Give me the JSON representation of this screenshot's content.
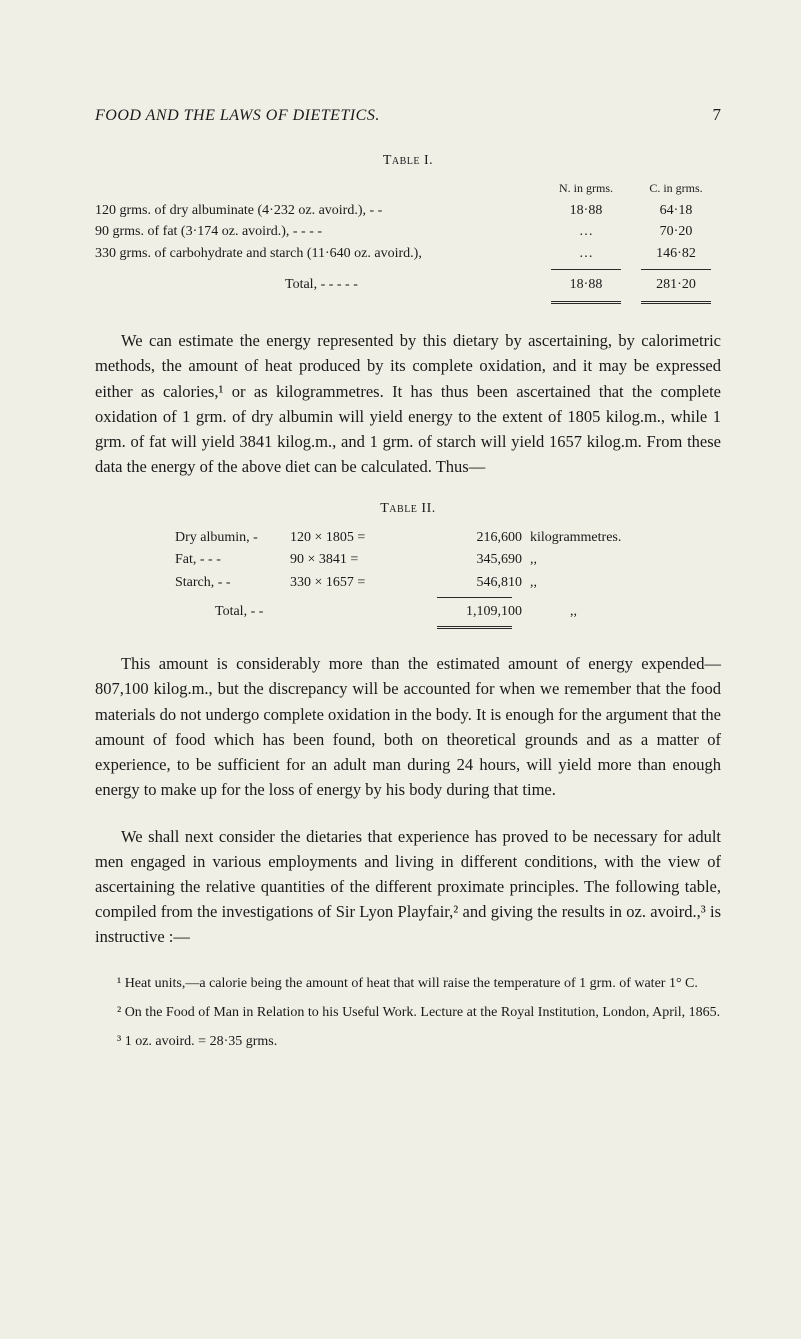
{
  "colors": {
    "background": "#efefe5",
    "text": "#1a1a1a",
    "rule": "#2a2a2a"
  },
  "typography": {
    "body_font": "Georgia, Times New Roman, serif",
    "body_fontsize_pt": 12,
    "heading_smallcaps": true,
    "italic_header": true
  },
  "header": {
    "title": "FOOD AND THE LAWS OF DIETETICS.",
    "page_number": "7"
  },
  "table1": {
    "heading": "Table I.",
    "col_headers": {
      "n": "N. in grms.",
      "c": "C. in grms."
    },
    "rows": [
      {
        "label": "120 grms. of dry albuminate (4·232 oz. avoird.),  -    -",
        "n": "18·88",
        "c": "64·18"
      },
      {
        "label": "90 grms. of fat (3·174 oz. avoird.),       -     -     -     -",
        "n": "…",
        "c": "70·20"
      },
      {
        "label": "330 grms. of carbohydrate and starch (11·640 oz. avoird.),",
        "n": "…",
        "c": "146·82"
      }
    ],
    "total": {
      "label": "Total,   -     -     -     -     -",
      "n": "18·88",
      "c": "281·20"
    }
  },
  "para1": "We can estimate the energy represented by this dietary by ascertaining, by calorimetric methods, the amount of heat produced by its complete oxidation, and it may be expressed either as calories,¹ or as kilogrammetres. It has thus been ascertained that the complete oxidation of 1 grm. of dry albumin will yield energy to the extent of 1805 kilog.m., while 1 grm. of fat will yield 3841 kilog.m., and 1 grm. of starch will yield 1657 kilog.m. From these data the energy of the above diet can be calculated. Thus—",
  "table2": {
    "heading": "Table II.",
    "rows": [
      {
        "name": "Dry albumin,  -",
        "expr": "120 × 1805 =",
        "val": "216,600",
        "unit": "kilogrammetres."
      },
      {
        "name": "Fat,  -     -     -",
        "expr": "90 × 3841 =",
        "val": "345,690",
        "unit": ",,"
      },
      {
        "name": "Starch,     -     -",
        "expr": "330 × 1657 =",
        "val": "546,810",
        "unit": ",,"
      }
    ],
    "total": {
      "label": "Total,    -    -",
      "val": "1,109,100",
      "unit": ",,"
    }
  },
  "para2": "This amount is considerably more than the estimated amount of energy expended—807,100 kilog.m., but the discrepancy will be accounted for when we remember that the food materials do not undergo complete oxidation in the body. It is enough for the argument that the amount of food which has been found, both on theoretical grounds and as a matter of experience, to be sufficient for an adult man during 24 hours, will yield more than enough energy to make up for the loss of energy by his body during that time.",
  "para3": "We shall next consider the dietaries that experience has proved to be necessary for adult men engaged in various employments and living in different conditions, with the view of ascertaining the relative quantities of the different proximate principles. The following table, compiled from the investigations of Sir Lyon Playfair,² and giving the results in oz. avoird.,³ is instructive :—",
  "footnotes": {
    "fn1": "¹ Heat units,—a calorie being the amount of heat that will raise the temperature of 1 grm. of water 1° C.",
    "fn2": "² On the Food of Man in Relation to his Useful Work. Lecture at the Royal Institution, London, April, 1865.",
    "fn3": "³ 1 oz. avoird. = 28·35 grms."
  }
}
